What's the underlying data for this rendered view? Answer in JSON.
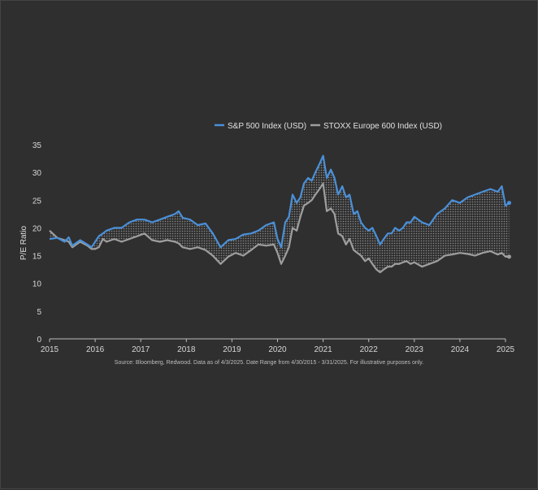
{
  "chart_data": {
    "type": "line",
    "ylabel": "P/E Ratio",
    "ylim": [
      0,
      35
    ],
    "yticks": [
      0,
      5,
      10,
      15,
      20,
      25,
      30,
      35
    ],
    "xlim": [
      2015,
      2025
    ],
    "xticks": [
      "2015",
      "2016",
      "2017",
      "2018",
      "2019",
      "2020",
      "2021",
      "2022",
      "2023",
      "2024",
      "2025"
    ],
    "legend_position": "top",
    "grid": false,
    "fill_between_series": true,
    "source_note": "Source: Bloomberg, Redwood. Data as of 4/3/2025. Date Range from 4/30/2015 - 3/31/2025. For illustrative purposes only.",
    "series": [
      {
        "name": "S&P 500 Index (USD)",
        "color": "#4a90d9",
        "x": [
          2015.0,
          2015.17,
          2015.33,
          2015.42,
          2015.5,
          2015.67,
          2015.83,
          2015.92,
          2016.0,
          2016.08,
          2016.17,
          2016.25,
          2016.42,
          2016.58,
          2016.75,
          2016.92,
          2017.08,
          2017.25,
          2017.42,
          2017.58,
          2017.75,
          2017.83,
          2017.92,
          2018.08,
          2018.25,
          2018.42,
          2018.58,
          2018.75,
          2018.92,
          2019.08,
          2019.25,
          2019.42,
          2019.58,
          2019.75,
          2019.92,
          2020.0,
          2020.08,
          2020.17,
          2020.25,
          2020.33,
          2020.42,
          2020.5,
          2020.58,
          2020.67,
          2020.75,
          2020.83,
          2020.92,
          2021.0,
          2021.08,
          2021.17,
          2021.25,
          2021.33,
          2021.42,
          2021.5,
          2021.58,
          2021.67,
          2021.75,
          2021.83,
          2021.92,
          2022.0,
          2022.08,
          2022.17,
          2022.25,
          2022.33,
          2022.42,
          2022.5,
          2022.58,
          2022.67,
          2022.75,
          2022.83,
          2022.92,
          2023.0,
          2023.17,
          2023.33,
          2023.5,
          2023.67,
          2023.83,
          2024.0,
          2024.17,
          2024.33,
          2024.5,
          2024.67,
          2024.83,
          2024.92,
          2025.0,
          2025.08
        ],
        "values": [
          18,
          18.2,
          17.5,
          18.3,
          16.8,
          17.8,
          17,
          16.5,
          17.5,
          18.5,
          19,
          19.5,
          20,
          20,
          21,
          21.5,
          21.5,
          21,
          21.5,
          22,
          22.5,
          23,
          21.8,
          21.5,
          20.5,
          20.8,
          19,
          16.5,
          17.8,
          18,
          18.8,
          19,
          19.5,
          20.5,
          21,
          18,
          16.5,
          21,
          22,
          26,
          24.5,
          25.5,
          28,
          29,
          28.5,
          30,
          31.5,
          33,
          29,
          30.5,
          29,
          26,
          27.5,
          25.5,
          26,
          22.5,
          23,
          21,
          20,
          19.5,
          20,
          18.5,
          17,
          18,
          19,
          19,
          20,
          19.5,
          20,
          21,
          21,
          22,
          21,
          20.5,
          22.5,
          23.5,
          25,
          24.5,
          25.5,
          26,
          26.5,
          27,
          26.5,
          27.5,
          24,
          24.5
        ]
      },
      {
        "name": "STOXX Europe 600 Index (USD)",
        "color": "#9e9e9e",
        "x": [
          2015.0,
          2015.17,
          2015.33,
          2015.42,
          2015.5,
          2015.67,
          2015.83,
          2015.92,
          2016.0,
          2016.08,
          2016.17,
          2016.25,
          2016.42,
          2016.58,
          2016.75,
          2016.92,
          2017.08,
          2017.25,
          2017.42,
          2017.58,
          2017.75,
          2017.83,
          2017.92,
          2018.08,
          2018.25,
          2018.42,
          2018.58,
          2018.75,
          2018.92,
          2019.08,
          2019.25,
          2019.42,
          2019.58,
          2019.75,
          2019.92,
          2020.0,
          2020.08,
          2020.17,
          2020.25,
          2020.33,
          2020.42,
          2020.5,
          2020.58,
          2020.67,
          2020.75,
          2020.83,
          2020.92,
          2021.0,
          2021.08,
          2021.17,
          2021.25,
          2021.33,
          2021.42,
          2021.5,
          2021.58,
          2021.67,
          2021.75,
          2021.83,
          2021.92,
          2022.0,
          2022.08,
          2022.17,
          2022.25,
          2022.33,
          2022.42,
          2022.5,
          2022.58,
          2022.67,
          2022.75,
          2022.83,
          2022.92,
          2023.0,
          2023.17,
          2023.33,
          2023.5,
          2023.67,
          2023.83,
          2024.0,
          2024.17,
          2024.33,
          2024.5,
          2024.67,
          2024.83,
          2024.92,
          2025.0,
          2025.08
        ],
        "values": [
          19.5,
          18.2,
          17.8,
          17.5,
          16.5,
          17.5,
          16.8,
          16.2,
          16.2,
          16.5,
          18,
          17.5,
          18,
          17.5,
          18,
          18.5,
          19,
          17.8,
          17.5,
          17.8,
          17.5,
          17.2,
          16.5,
          16.2,
          16.5,
          16,
          15,
          13.5,
          14.8,
          15.5,
          15,
          16,
          17,
          16.8,
          17,
          15.5,
          13.5,
          15,
          16.5,
          20,
          19.5,
          22,
          24,
          24.5,
          25,
          26,
          27,
          28,
          23,
          23.5,
          22.5,
          19,
          18.5,
          17,
          18,
          16,
          15.5,
          15,
          14,
          14.5,
          13.5,
          12.5,
          12,
          12.5,
          13,
          13,
          13.5,
          13.5,
          13.8,
          14,
          13.5,
          13.8,
          13,
          13.5,
          14,
          15,
          15.2,
          15.5,
          15.3,
          15,
          15.5,
          15.8,
          15.2,
          15.5,
          14.8,
          14.8
        ]
      }
    ]
  }
}
